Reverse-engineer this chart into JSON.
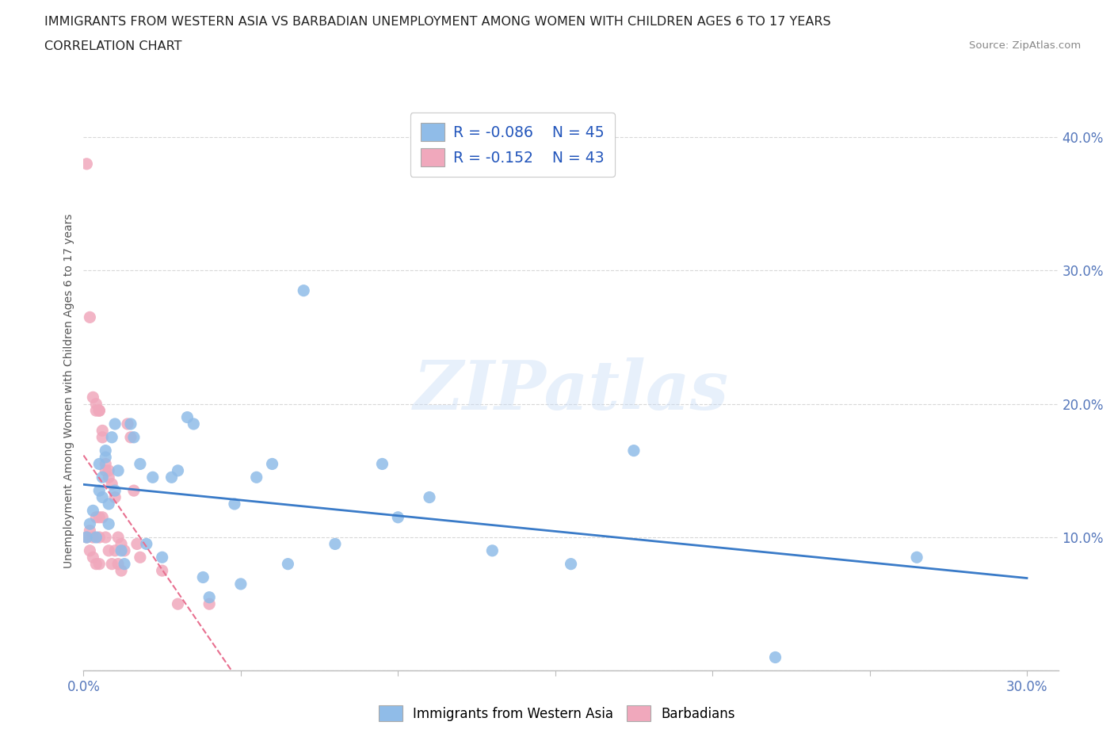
{
  "title_line1": "IMMIGRANTS FROM WESTERN ASIA VS BARBADIAN UNEMPLOYMENT AMONG WOMEN WITH CHILDREN AGES 6 TO 17 YEARS",
  "title_line2": "CORRELATION CHART",
  "source_text": "Source: ZipAtlas.com",
  "ylabel": "Unemployment Among Women with Children Ages 6 to 17 years",
  "xlim": [
    0.0,
    0.31
  ],
  "ylim": [
    0.0,
    0.42
  ],
  "xtick_vals": [
    0.0,
    0.05,
    0.1,
    0.15,
    0.2,
    0.25,
    0.3
  ],
  "ytick_vals": [
    0.0,
    0.1,
    0.2,
    0.3,
    0.4
  ],
  "grid_color": "#d8d8d8",
  "background_color": "#ffffff",
  "watermark_text": "ZIPatlas",
  "blue_color": "#90bce8",
  "pink_color": "#f0a8bc",
  "blue_line_color": "#3a7bc8",
  "pink_line_color": "#e87090",
  "tick_color": "#5577bb",
  "series_blue": {
    "name": "Immigrants from Western Asia",
    "R": -0.086,
    "N": 45,
    "x": [
      0.001,
      0.002,
      0.003,
      0.004,
      0.005,
      0.005,
      0.006,
      0.006,
      0.007,
      0.007,
      0.008,
      0.008,
      0.009,
      0.01,
      0.01,
      0.011,
      0.012,
      0.013,
      0.015,
      0.016,
      0.018,
      0.02,
      0.022,
      0.025,
      0.028,
      0.03,
      0.033,
      0.035,
      0.038,
      0.04,
      0.048,
      0.05,
      0.055,
      0.06,
      0.065,
      0.07,
      0.08,
      0.095,
      0.1,
      0.11,
      0.13,
      0.155,
      0.175,
      0.22,
      0.265
    ],
    "y": [
      0.1,
      0.11,
      0.12,
      0.1,
      0.155,
      0.135,
      0.13,
      0.145,
      0.16,
      0.165,
      0.11,
      0.125,
      0.175,
      0.135,
      0.185,
      0.15,
      0.09,
      0.08,
      0.185,
      0.175,
      0.155,
      0.095,
      0.145,
      0.085,
      0.145,
      0.15,
      0.19,
      0.185,
      0.07,
      0.055,
      0.125,
      0.065,
      0.145,
      0.155,
      0.08,
      0.285,
      0.095,
      0.155,
      0.115,
      0.13,
      0.09,
      0.08,
      0.165,
      0.01,
      0.085
    ]
  },
  "series_pink": {
    "name": "Barbadians",
    "R": -0.152,
    "N": 43,
    "x": [
      0.001,
      0.001,
      0.002,
      0.002,
      0.002,
      0.003,
      0.003,
      0.003,
      0.004,
      0.004,
      0.004,
      0.004,
      0.005,
      0.005,
      0.005,
      0.005,
      0.005,
      0.006,
      0.006,
      0.006,
      0.007,
      0.007,
      0.007,
      0.008,
      0.008,
      0.008,
      0.009,
      0.009,
      0.01,
      0.01,
      0.011,
      0.011,
      0.012,
      0.012,
      0.013,
      0.014,
      0.015,
      0.016,
      0.017,
      0.018,
      0.025,
      0.03,
      0.04
    ],
    "y": [
      0.38,
      0.1,
      0.265,
      0.105,
      0.09,
      0.205,
      0.1,
      0.085,
      0.2,
      0.195,
      0.115,
      0.08,
      0.195,
      0.195,
      0.115,
      0.1,
      0.08,
      0.18,
      0.175,
      0.115,
      0.155,
      0.15,
      0.1,
      0.15,
      0.145,
      0.09,
      0.14,
      0.08,
      0.13,
      0.09,
      0.1,
      0.08,
      0.095,
      0.075,
      0.09,
      0.185,
      0.175,
      0.135,
      0.095,
      0.085,
      0.075,
      0.05,
      0.05
    ]
  }
}
